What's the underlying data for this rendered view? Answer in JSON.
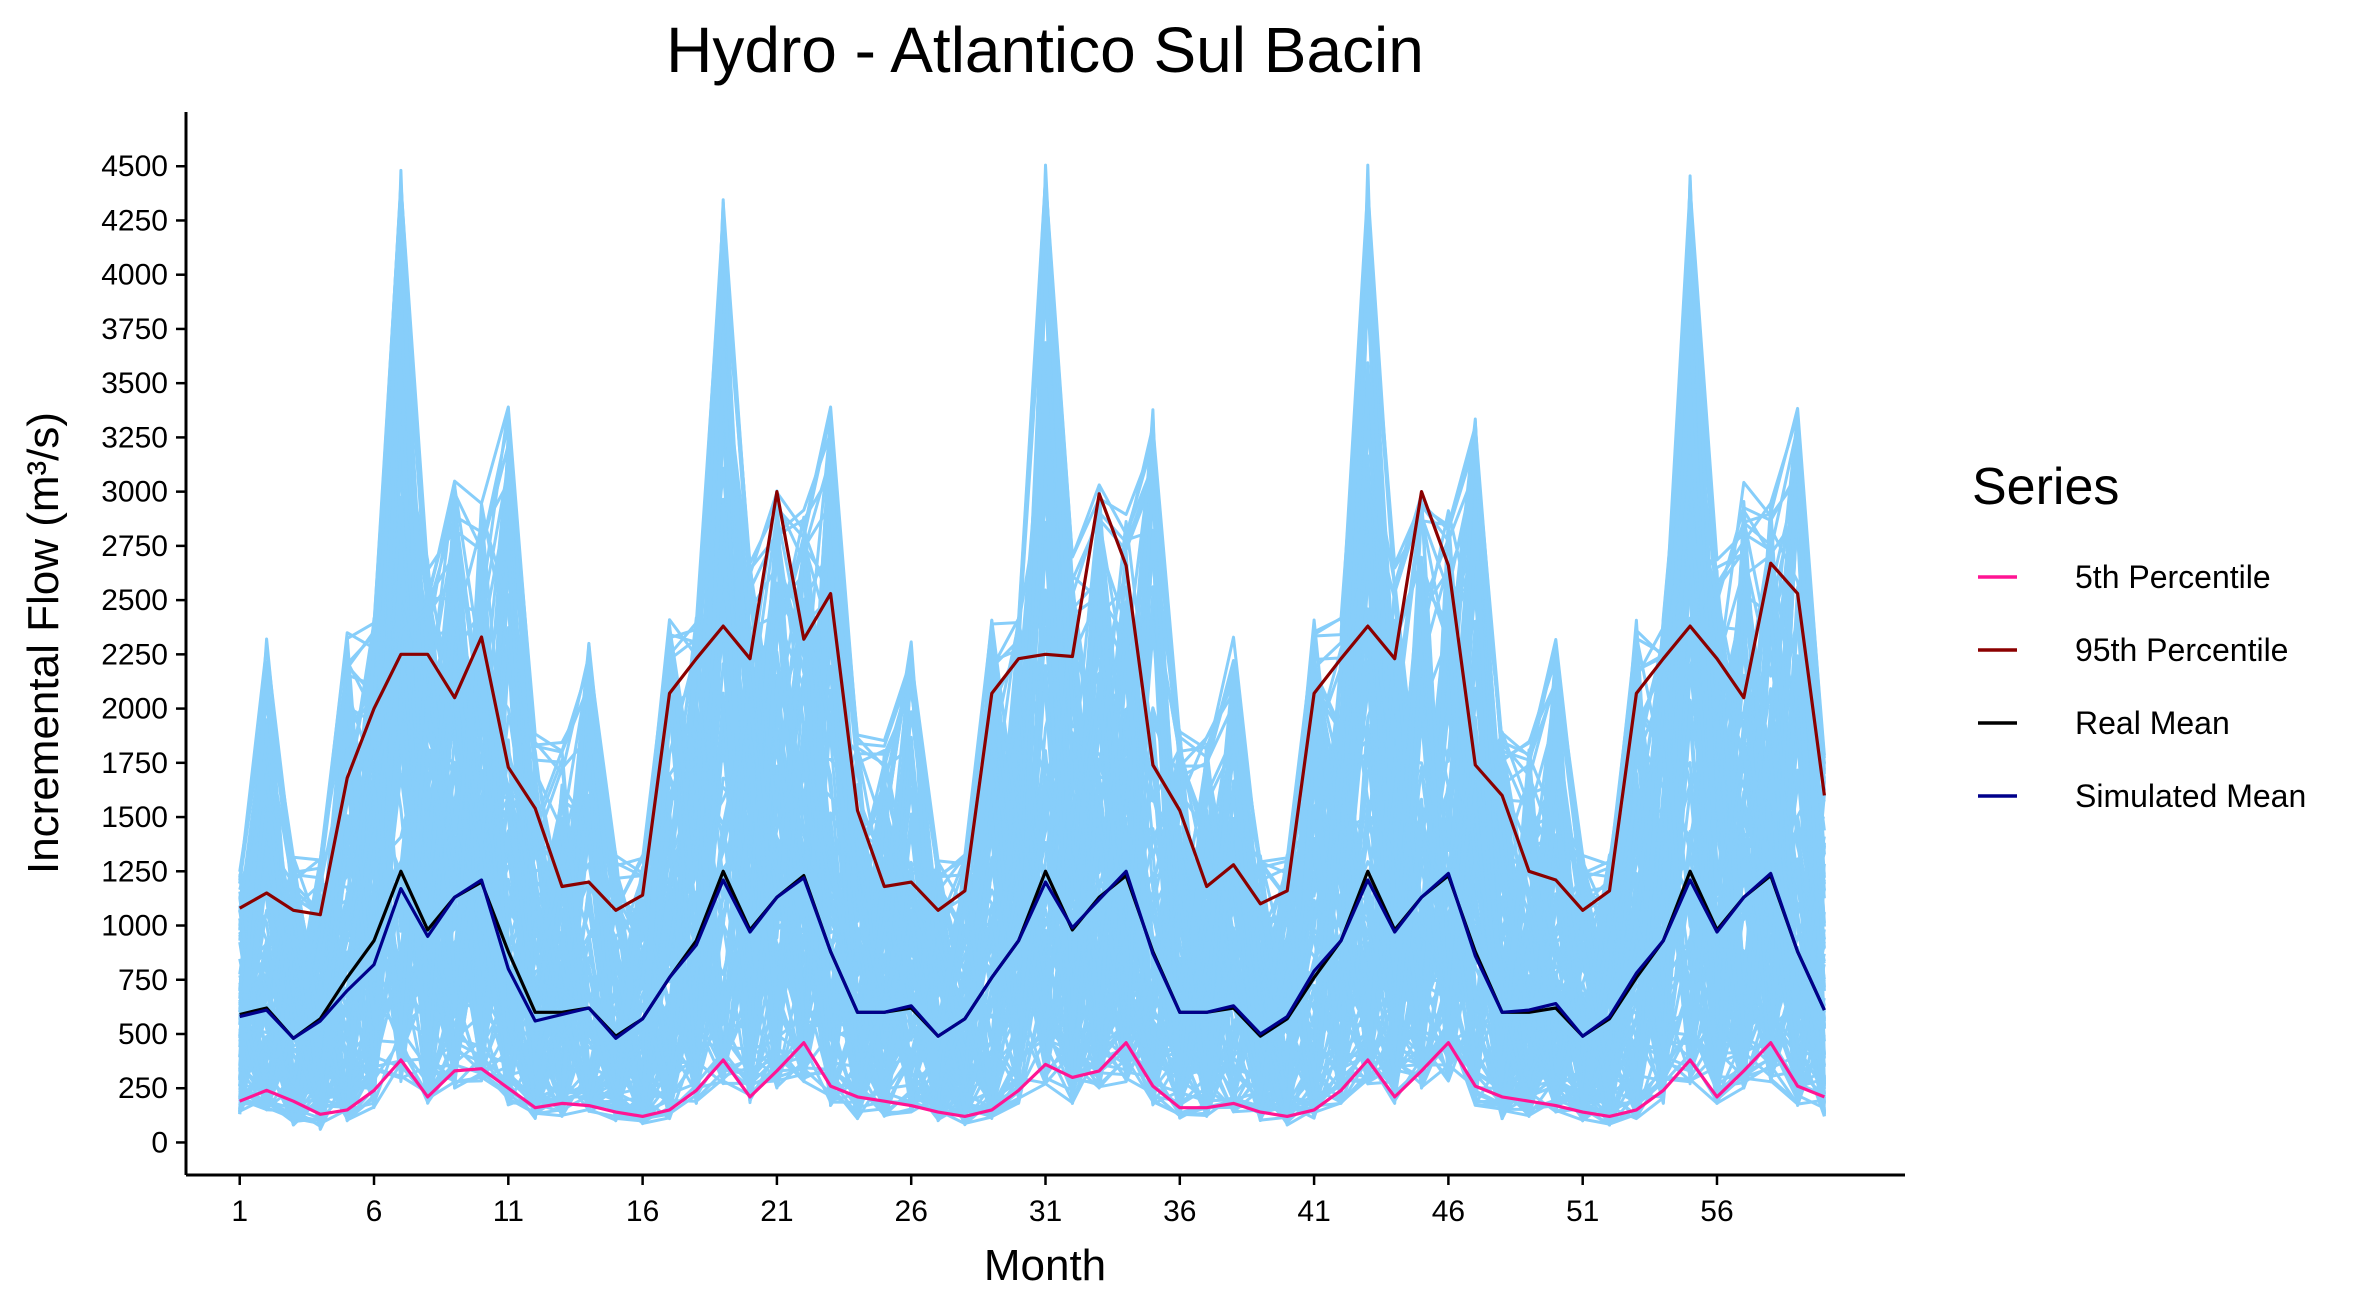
{
  "chart_data": {
    "type": "line",
    "title": "Hydro - Atlantico Sul Bacin",
    "xlabel": "Month",
    "ylabel": "Incremental Flow (m³/s)",
    "xlim": [
      -1,
      63
    ],
    "ylim": [
      -150,
      4750
    ],
    "xticks": [
      1,
      6,
      11,
      16,
      21,
      26,
      31,
      36,
      41,
      46,
      51,
      56
    ],
    "yticks": [
      0,
      250,
      500,
      750,
      1000,
      1250,
      1500,
      1750,
      2000,
      2250,
      2500,
      2750,
      3000,
      3250,
      3500,
      3750,
      4000,
      4250,
      4500
    ],
    "grid": false,
    "legend": {
      "title": "Series",
      "position": "right",
      "entries": [
        {
          "label": "5th Percentile",
          "color": "#ff1493"
        },
        {
          "label": "95th Percentile",
          "color": "#8b0000"
        },
        {
          "label": "Real Mean",
          "color": "#000000"
        },
        {
          "label": "Simulated Mean",
          "color": "#00008b"
        }
      ]
    },
    "simulation_color": "#87cefa",
    "simulation_envelope": {
      "x": [
        1,
        2,
        3,
        4,
        5,
        6,
        7,
        8,
        9,
        10,
        11,
        12,
        13,
        14,
        15,
        16,
        17,
        18,
        19,
        20,
        21,
        22,
        23,
        24,
        25,
        26,
        27,
        28,
        29,
        30,
        31,
        32,
        33,
        34,
        35,
        36,
        37,
        38,
        39,
        40,
        41,
        42,
        43,
        44,
        45,
        46,
        47,
        48,
        49,
        50,
        51,
        52,
        53,
        54,
        55,
        56,
        57,
        58,
        59,
        60
      ],
      "upper": [
        1280,
        2330,
        1320,
        1320,
        2420,
        2420,
        4510,
        2700,
        3050,
        2950,
        3400,
        1900,
        1870,
        2330,
        1330,
        1330,
        2420,
        2420,
        4510,
        2700,
        3050,
        2950,
        3400,
        1900,
        1870,
        2330,
        1330,
        1330,
        2420,
        2420,
        4510,
        2700,
        3050,
        2950,
        3400,
        1900,
        1870,
        2330,
        1330,
        1330,
        2420,
        2420,
        4510,
        2700,
        3050,
        2950,
        3400,
        1900,
        1870,
        2330,
        1330,
        1330,
        2420,
        2420,
        4510,
        2700,
        3050,
        2950,
        3400,
        1800
      ],
      "lower": [
        130,
        150,
        80,
        60,
        100,
        160,
        270,
        180,
        250,
        280,
        170,
        110,
        120,
        140,
        100,
        80,
        110,
        180,
        270,
        180,
        250,
        280,
        170,
        110,
        120,
        140,
        100,
        80,
        110,
        180,
        270,
        180,
        250,
        280,
        170,
        110,
        120,
        140,
        100,
        80,
        110,
        180,
        270,
        180,
        250,
        280,
        170,
        110,
        120,
        140,
        100,
        80,
        110,
        180,
        270,
        180,
        250,
        280,
        170,
        120
      ]
    },
    "x": [
      1,
      2,
      3,
      4,
      5,
      6,
      7,
      8,
      9,
      10,
      11,
      12,
      13,
      14,
      15,
      16,
      17,
      18,
      19,
      20,
      21,
      22,
      23,
      24,
      25,
      26,
      27,
      28,
      29,
      30,
      31,
      32,
      33,
      34,
      35,
      36,
      37,
      38,
      39,
      40,
      41,
      42,
      43,
      44,
      45,
      46,
      47,
      48,
      49,
      50,
      51,
      52,
      53,
      54,
      55,
      56,
      57,
      58,
      59,
      60
    ],
    "series": [
      {
        "name": "5th Percentile",
        "color": "#ff1493",
        "values": [
          190,
          240,
          190,
          130,
          150,
          240,
          380,
          210,
          330,
          340,
          250,
          160,
          180,
          170,
          140,
          120,
          150,
          240,
          380,
          210,
          330,
          460,
          260,
          210,
          190,
          170,
          140,
          120,
          150,
          240,
          360,
          300,
          330,
          460,
          260,
          160,
          160,
          180,
          140,
          120,
          150,
          240,
          380,
          210,
          330,
          460,
          260,
          210,
          190,
          170,
          140,
          120,
          150,
          240,
          380,
          210,
          330,
          460,
          260,
          210
        ]
      },
      {
        "name": "95th Percentile",
        "color": "#8b0000",
        "values": [
          1080,
          1150,
          1070,
          1050,
          1680,
          2000,
          2250,
          2250,
          2050,
          2330,
          1730,
          1540,
          1180,
          1200,
          1070,
          1140,
          2070,
          2230,
          2380,
          2230,
          3000,
          2320,
          2530,
          1530,
          1180,
          1200,
          1070,
          1160,
          2070,
          2230,
          2250,
          2240,
          2990,
          2660,
          1740,
          1530,
          1180,
          1280,
          1100,
          1160,
          2070,
          2230,
          2380,
          2230,
          3000,
          2660,
          1740,
          1600,
          1250,
          1210,
          1070,
          1160,
          2070,
          2230,
          2380,
          2230,
          2050,
          2670,
          2530,
          1600
        ]
      },
      {
        "name": "Real Mean",
        "color": "#000000",
        "values": [
          590,
          620,
          480,
          570,
          760,
          930,
          1250,
          980,
          1130,
          1200,
          880,
          600,
          600,
          620,
          490,
          570,
          760,
          930,
          1250,
          980,
          1130,
          1230,
          880,
          600,
          600,
          620,
          490,
          570,
          760,
          930,
          1250,
          980,
          1130,
          1230,
          880,
          600,
          600,
          620,
          490,
          570,
          760,
          930,
          1250,
          980,
          1130,
          1230,
          880,
          600,
          600,
          620,
          490,
          570,
          760,
          930,
          1250,
          980,
          1130,
          1230,
          880,
          610
        ]
      },
      {
        "name": "Simulated Mean",
        "color": "#00008b",
        "values": [
          580,
          610,
          480,
          560,
          700,
          820,
          1170,
          950,
          1130,
          1210,
          800,
          560,
          590,
          620,
          480,
          570,
          760,
          910,
          1210,
          970,
          1130,
          1220,
          880,
          600,
          600,
          630,
          490,
          570,
          760,
          930,
          1200,
          990,
          1120,
          1250,
          870,
          600,
          600,
          630,
          500,
          580,
          790,
          930,
          1210,
          970,
          1130,
          1240,
          860,
          600,
          610,
          640,
          490,
          580,
          780,
          930,
          1210,
          970,
          1130,
          1240,
          880,
          610
        ]
      }
    ]
  }
}
